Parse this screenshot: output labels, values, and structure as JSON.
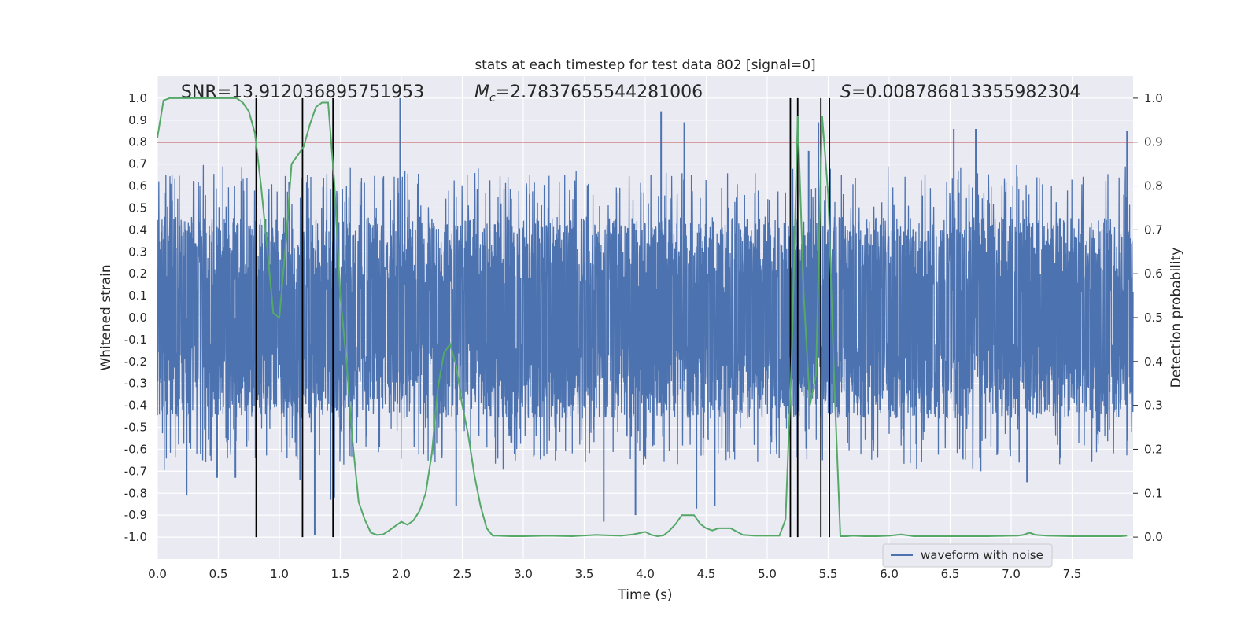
{
  "chart_data": {
    "type": "line",
    "title": "stats at each timestep for test data 802 [signal=0]",
    "xlabel": "Time (s)",
    "ylabel": "Whitened strain",
    "y2label": "Detection probability",
    "xlim": [
      0.0,
      8.0
    ],
    "ylim": [
      -1.1,
      1.1
    ],
    "y2lim": [
      -0.05,
      1.05
    ],
    "grid": true,
    "background_color": "#eaeaf2",
    "x_ticks": [
      "0.0",
      "0.5",
      "1.0",
      "1.5",
      "2.0",
      "2.5",
      "3.0",
      "3.5",
      "4.0",
      "4.5",
      "5.0",
      "5.5",
      "6.0",
      "6.5",
      "7.0",
      "7.5"
    ],
    "y_ticks": [
      "1.0",
      "0.9",
      "0.8",
      "0.7",
      "0.6",
      "0.5",
      "0.4",
      "0.3",
      "0.2",
      "0.1",
      "0.0",
      "-0.1",
      "-0.2",
      "-0.3",
      "-0.4",
      "-0.5",
      "-0.6",
      "-0.7",
      "-0.8",
      "-0.9",
      "-1.0"
    ],
    "y2_ticks": [
      "1.0",
      "0.9",
      "0.8",
      "0.7",
      "0.6",
      "0.5",
      "0.4",
      "0.3",
      "0.2",
      "0.1",
      "0.0"
    ],
    "annotations": {
      "snr": "SNR=13.912036895751953",
      "mc_symbol": "M",
      "mc_subscript": "c",
      "mc_value": "=2.7837655544281006",
      "s_symbol": "S",
      "s_value": "=0.008786813355982304"
    },
    "legend": {
      "label": "waveform with noise",
      "position": "lower-right"
    },
    "threshold": {
      "value": 0.9,
      "axis": "y2",
      "color": "#c44e52"
    },
    "vlines": [
      0.81,
      1.19,
      1.44,
      5.19,
      5.25,
      5.44,
      5.51
    ],
    "waveform": {
      "name": "waveform with noise",
      "color": "#4c72b0",
      "core_amplitude": 0.46,
      "spikes": [
        {
          "x": 0.24,
          "y": -0.81
        },
        {
          "x": 0.49,
          "y": -0.73
        },
        {
          "x": 0.64,
          "y": -0.73
        },
        {
          "x": 1.08,
          "y": 0.62
        },
        {
          "x": 1.17,
          "y": -0.74
        },
        {
          "x": 1.29,
          "y": -0.99
        },
        {
          "x": 1.42,
          "y": -0.83
        },
        {
          "x": 1.45,
          "y": -0.82
        },
        {
          "x": 1.99,
          "y": 1.0
        },
        {
          "x": 2.45,
          "y": -0.86
        },
        {
          "x": 3.66,
          "y": -0.93
        },
        {
          "x": 3.92,
          "y": -0.9
        },
        {
          "x": 4.13,
          "y": 0.94
        },
        {
          "x": 4.32,
          "y": 0.89
        },
        {
          "x": 4.57,
          "y": -0.86
        },
        {
          "x": 4.42,
          "y": -0.87
        },
        {
          "x": 5.34,
          "y": 0.76
        },
        {
          "x": 5.42,
          "y": 0.89
        },
        {
          "x": 6.53,
          "y": 0.86
        },
        {
          "x": 6.71,
          "y": 0.86
        },
        {
          "x": 7.95,
          "y": 0.85
        },
        {
          "x": 6.75,
          "y": -0.7
        },
        {
          "x": 7.13,
          "y": -0.75
        }
      ]
    },
    "probability_series": {
      "color": "#55a868",
      "x": [
        0.0,
        0.05,
        0.1,
        0.2,
        0.3,
        0.4,
        0.5,
        0.6,
        0.65,
        0.7,
        0.75,
        0.8,
        0.85,
        0.9,
        0.95,
        1.0,
        1.05,
        1.1,
        1.15,
        1.2,
        1.25,
        1.3,
        1.35,
        1.4,
        1.45,
        1.5,
        1.55,
        1.6,
        1.65,
        1.7,
        1.75,
        1.8,
        1.85,
        1.9,
        1.95,
        2.0,
        2.05,
        2.1,
        2.15,
        2.2,
        2.25,
        2.3,
        2.35,
        2.4,
        2.45,
        2.5,
        2.55,
        2.6,
        2.65,
        2.7,
        2.75,
        2.8,
        2.9,
        3.0,
        3.2,
        3.4,
        3.6,
        3.8,
        3.9,
        4.0,
        4.05,
        4.1,
        4.15,
        4.2,
        4.25,
        4.3,
        4.35,
        4.4,
        4.45,
        4.5,
        4.55,
        4.6,
        4.7,
        4.8,
        4.9,
        5.0,
        5.05,
        5.1,
        5.15,
        5.2,
        5.25,
        5.3,
        5.35,
        5.4,
        5.45,
        5.5,
        5.55,
        5.6,
        5.65,
        5.7,
        5.8,
        5.9,
        6.0,
        6.1,
        6.2,
        6.4,
        6.6,
        6.8,
        7.0,
        7.05,
        7.1,
        7.15,
        7.2,
        7.3,
        7.5,
        7.7,
        7.9,
        7.95
      ],
      "y": [
        0.91,
        0.995,
        1.0,
        1.0,
        1.0,
        1.0,
        1.0,
        1.0,
        1.0,
        0.99,
        0.97,
        0.92,
        0.8,
        0.66,
        0.51,
        0.5,
        0.66,
        0.85,
        0.87,
        0.89,
        0.94,
        0.98,
        0.99,
        0.99,
        0.81,
        0.55,
        0.4,
        0.22,
        0.08,
        0.04,
        0.01,
        0.005,
        0.006,
        0.015,
        0.025,
        0.035,
        0.028,
        0.038,
        0.06,
        0.1,
        0.19,
        0.34,
        0.42,
        0.44,
        0.39,
        0.3,
        0.23,
        0.14,
        0.07,
        0.02,
        0.003,
        0.003,
        0.002,
        0.002,
        0.003,
        0.002,
        0.005,
        0.003,
        0.006,
        0.012,
        0.005,
        0.002,
        0.004,
        0.015,
        0.03,
        0.05,
        0.05,
        0.05,
        0.03,
        0.02,
        0.015,
        0.02,
        0.02,
        0.005,
        0.003,
        0.003,
        0.003,
        0.003,
        0.04,
        0.4,
        0.96,
        0.55,
        0.3,
        0.37,
        0.96,
        0.78,
        0.35,
        0.002,
        0.002,
        0.003,
        0.002,
        0.002,
        0.003,
        0.006,
        0.002,
        0.002,
        0.002,
        0.002,
        0.003,
        0.003,
        0.005,
        0.01,
        0.005,
        0.003,
        0.002,
        0.002,
        0.002,
        0.003
      ]
    }
  }
}
